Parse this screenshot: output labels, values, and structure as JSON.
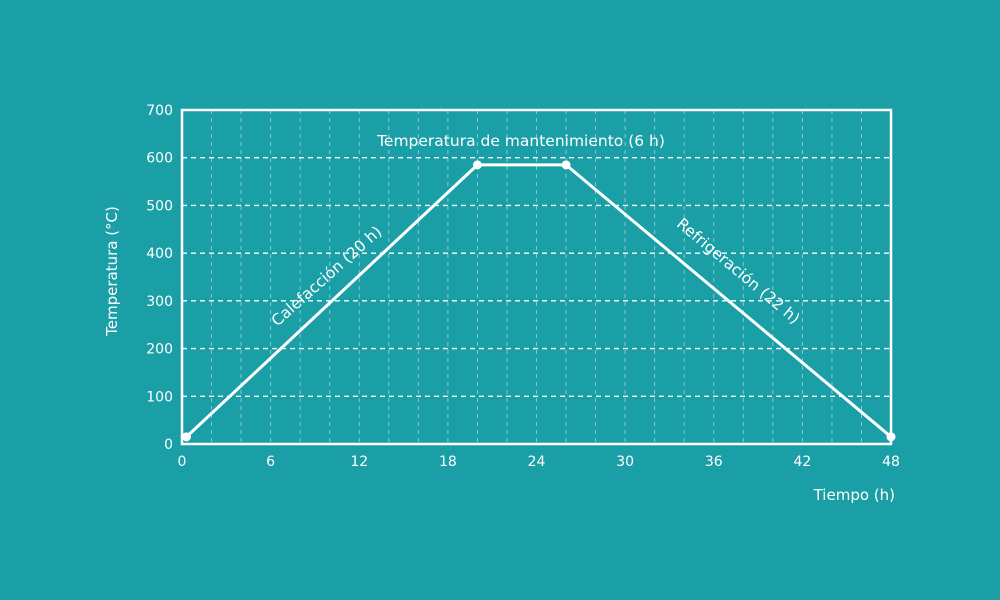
{
  "colors": {
    "background": "#1a9fa7",
    "foreground": "#ffffff"
  },
  "chart_data": {
    "type": "line",
    "title": "",
    "xlabel": "Tiempo (h)",
    "ylabel": "Temperatura (°C)",
    "xlim": [
      0,
      48
    ],
    "ylim": [
      0,
      700
    ],
    "x_ticks": [
      0,
      6,
      12,
      18,
      24,
      30,
      36,
      42,
      48
    ],
    "y_ticks": [
      0,
      100,
      200,
      300,
      400,
      500,
      600,
      700
    ],
    "grid": true,
    "series": [
      {
        "x": [
          0.3,
          20,
          26,
          48
        ],
        "y": [
          15,
          585,
          585,
          15
        ]
      }
    ],
    "annotations": [
      {
        "text": "Temperatura de mantenimiento (6 h)"
      },
      {
        "text": "Calefacción (20 h)"
      },
      {
        "text": "Refrigeración (22 h)"
      }
    ]
  }
}
